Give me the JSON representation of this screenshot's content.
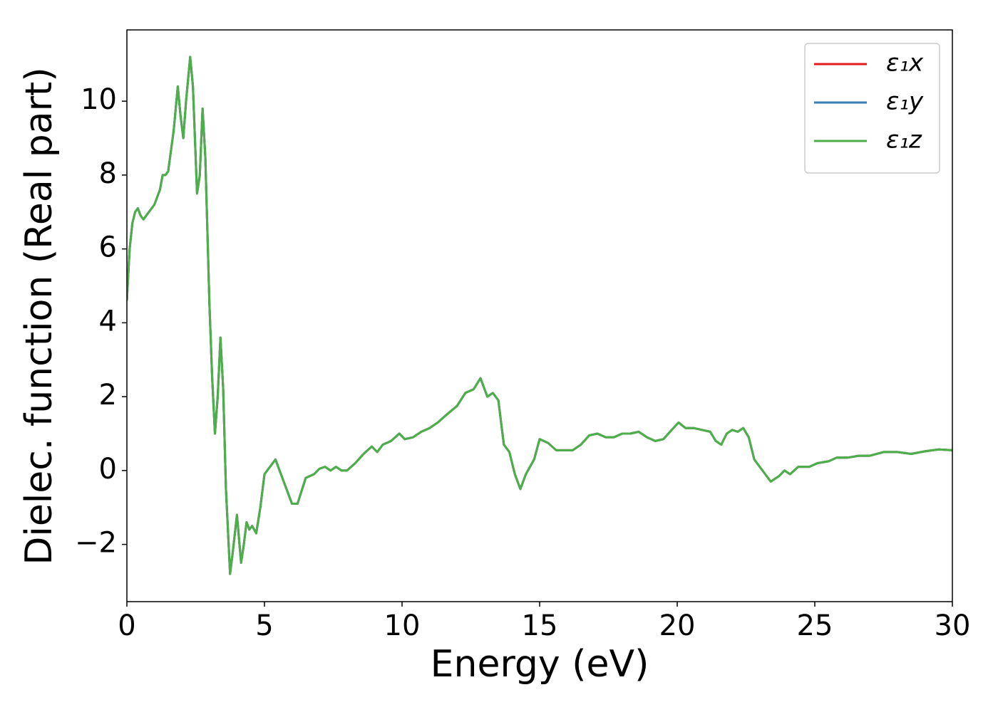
{
  "chart_data": {
    "type": "line",
    "xlabel": "Energy (eV)",
    "ylabel": "Dielec. function (Real part)",
    "x": [
      0,
      0.1,
      0.2,
      0.3,
      0.4,
      0.5,
      0.6,
      0.8,
      1.0,
      1.2,
      1.3,
      1.4,
      1.5,
      1.7,
      1.85,
      1.95,
      2.05,
      2.15,
      2.3,
      2.4,
      2.55,
      2.65,
      2.75,
      2.85,
      3.0,
      3.1,
      3.2,
      3.3,
      3.4,
      3.5,
      3.6,
      3.75,
      3.85,
      4.0,
      4.15,
      4.25,
      4.35,
      4.45,
      4.55,
      4.7,
      4.85,
      5.0,
      5.2,
      5.4,
      5.6,
      5.8,
      6.0,
      6.2,
      6.5,
      6.8,
      7.0,
      7.2,
      7.4,
      7.6,
      7.8,
      8.0,
      8.3,
      8.6,
      8.9,
      9.1,
      9.3,
      9.6,
      9.9,
      10.1,
      10.4,
      10.7,
      11.0,
      11.3,
      11.6,
      12.0,
      12.3,
      12.6,
      12.85,
      13.1,
      13.3,
      13.5,
      13.7,
      13.9,
      14.1,
      14.3,
      14.5,
      14.8,
      15.0,
      15.3,
      15.6,
      15.9,
      16.2,
      16.5,
      16.8,
      17.1,
      17.4,
      17.7,
      18.0,
      18.3,
      18.6,
      18.9,
      19.2,
      19.5,
      19.8,
      20.05,
      20.3,
      20.6,
      20.9,
      21.2,
      21.4,
      21.6,
      21.8,
      22.0,
      22.2,
      22.4,
      22.6,
      22.8,
      23.1,
      23.4,
      23.7,
      23.9,
      24.1,
      24.4,
      24.8,
      25.1,
      25.5,
      25.8,
      26.2,
      26.6,
      27.0,
      27.5,
      28.0,
      28.5,
      29.0,
      29.5,
      30.0
    ],
    "series": [
      {
        "name": "ε₁x",
        "color": "#e41a1c",
        "values": [
          4.6,
          6.0,
          6.7,
          7.0,
          7.1,
          6.9,
          6.8,
          7.0,
          7.2,
          7.6,
          8.0,
          8.0,
          8.1,
          9.2,
          10.4,
          9.6,
          9.0,
          10.0,
          11.2,
          10.4,
          7.5,
          8.0,
          9.8,
          8.5,
          4.5,
          2.5,
          1.0,
          2.0,
          3.6,
          2.2,
          -0.5,
          -2.8,
          -2.2,
          -1.2,
          -2.5,
          -2.0,
          -1.4,
          -1.6,
          -1.5,
          -1.7,
          -1.0,
          -0.1,
          0.1,
          0.3,
          -0.1,
          -0.5,
          -0.9,
          -0.9,
          -0.2,
          -0.1,
          0.05,
          0.1,
          0.0,
          0.1,
          0.0,
          0.0,
          0.2,
          0.45,
          0.65,
          0.5,
          0.7,
          0.8,
          1.0,
          0.85,
          0.9,
          1.05,
          1.15,
          1.3,
          1.5,
          1.75,
          2.1,
          2.2,
          2.5,
          2.0,
          2.1,
          1.9,
          0.7,
          0.5,
          -0.1,
          -0.5,
          -0.1,
          0.3,
          0.85,
          0.75,
          0.55,
          0.55,
          0.55,
          0.7,
          0.95,
          1.0,
          0.9,
          0.9,
          1.0,
          1.0,
          1.05,
          0.9,
          0.8,
          0.85,
          1.1,
          1.3,
          1.15,
          1.15,
          1.1,
          1.05,
          0.8,
          0.7,
          1.0,
          1.1,
          1.05,
          1.15,
          0.9,
          0.3,
          0.0,
          -0.3,
          -0.15,
          0.0,
          -0.1,
          0.1,
          0.1,
          0.2,
          0.25,
          0.35,
          0.35,
          0.4,
          0.4,
          0.5,
          0.5,
          0.45,
          0.52,
          0.57,
          0.55
        ]
      },
      {
        "name": "ε₁y",
        "color": "#377eb8",
        "values": [
          4.6,
          6.0,
          6.7,
          7.0,
          7.1,
          6.9,
          6.8,
          7.0,
          7.2,
          7.6,
          8.0,
          8.0,
          8.1,
          9.2,
          10.4,
          9.6,
          9.0,
          10.0,
          11.2,
          10.4,
          7.5,
          8.0,
          9.8,
          8.5,
          4.5,
          2.5,
          1.0,
          2.0,
          3.6,
          2.2,
          -0.5,
          -2.8,
          -2.2,
          -1.2,
          -2.5,
          -2.0,
          -1.4,
          -1.6,
          -1.5,
          -1.7,
          -1.0,
          -0.1,
          0.1,
          0.3,
          -0.1,
          -0.5,
          -0.9,
          -0.9,
          -0.2,
          -0.1,
          0.05,
          0.1,
          0.0,
          0.1,
          0.0,
          0.0,
          0.2,
          0.45,
          0.65,
          0.5,
          0.7,
          0.8,
          1.0,
          0.85,
          0.9,
          1.05,
          1.15,
          1.3,
          1.5,
          1.75,
          2.1,
          2.2,
          2.5,
          2.0,
          2.1,
          1.9,
          0.7,
          0.5,
          -0.1,
          -0.5,
          -0.1,
          0.3,
          0.85,
          0.75,
          0.55,
          0.55,
          0.55,
          0.7,
          0.95,
          1.0,
          0.9,
          0.9,
          1.0,
          1.0,
          1.05,
          0.9,
          0.8,
          0.85,
          1.1,
          1.3,
          1.15,
          1.15,
          1.1,
          1.05,
          0.8,
          0.7,
          1.0,
          1.1,
          1.05,
          1.15,
          0.9,
          0.3,
          0.0,
          -0.3,
          -0.15,
          0.0,
          -0.1,
          0.1,
          0.1,
          0.2,
          0.25,
          0.35,
          0.35,
          0.4,
          0.4,
          0.5,
          0.5,
          0.45,
          0.52,
          0.57,
          0.55
        ]
      },
      {
        "name": "ε₁z",
        "color": "#4daf4a",
        "values": [
          4.6,
          6.0,
          6.7,
          7.0,
          7.1,
          6.9,
          6.8,
          7.0,
          7.2,
          7.6,
          8.0,
          8.0,
          8.1,
          9.2,
          10.4,
          9.6,
          9.0,
          10.0,
          11.2,
          10.4,
          7.5,
          8.0,
          9.8,
          8.5,
          4.5,
          2.5,
          1.0,
          2.0,
          3.6,
          2.2,
          -0.5,
          -2.8,
          -2.2,
          -1.2,
          -2.5,
          -2.0,
          -1.4,
          -1.6,
          -1.5,
          -1.7,
          -1.0,
          -0.1,
          0.1,
          0.3,
          -0.1,
          -0.5,
          -0.9,
          -0.9,
          -0.2,
          -0.1,
          0.05,
          0.1,
          0.0,
          0.1,
          0.0,
          0.0,
          0.2,
          0.45,
          0.65,
          0.5,
          0.7,
          0.8,
          1.0,
          0.85,
          0.9,
          1.05,
          1.15,
          1.3,
          1.5,
          1.75,
          2.1,
          2.2,
          2.5,
          2.0,
          2.1,
          1.9,
          0.7,
          0.5,
          -0.1,
          -0.5,
          -0.1,
          0.3,
          0.85,
          0.75,
          0.55,
          0.55,
          0.55,
          0.7,
          0.95,
          1.0,
          0.9,
          0.9,
          1.0,
          1.0,
          1.05,
          0.9,
          0.8,
          0.85,
          1.1,
          1.3,
          1.15,
          1.15,
          1.1,
          1.05,
          0.8,
          0.7,
          1.0,
          1.1,
          1.05,
          1.15,
          0.9,
          0.3,
          0.0,
          -0.3,
          -0.15,
          0.0,
          -0.1,
          0.1,
          0.1,
          0.2,
          0.25,
          0.35,
          0.35,
          0.4,
          0.4,
          0.5,
          0.5,
          0.45,
          0.52,
          0.57,
          0.55
        ]
      }
    ],
    "xlim": [
      0,
      30
    ],
    "xticks": [
      0,
      5,
      10,
      15,
      20,
      25,
      30
    ],
    "ylim": [
      -3.55,
      11.93
    ],
    "yticks": [
      {
        "value": -2,
        "label": "−2"
      },
      0,
      2,
      4,
      6,
      8,
      10
    ],
    "grid": false,
    "legend": "upper right"
  }
}
